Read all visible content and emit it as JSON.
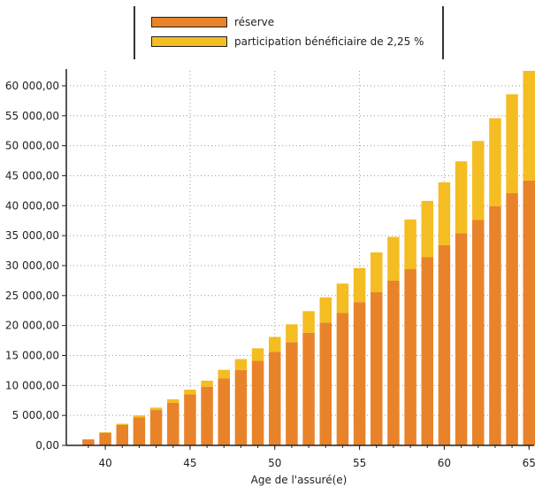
{
  "chart_data": {
    "type": "bar",
    "stacked": true,
    "xlabel": "Age de l'assuré(e)",
    "ylabel": "",
    "ylim": [
      0,
      62500
    ],
    "xlim": [
      37.7,
      65.3
    ],
    "x_ticks": [
      "40",
      "45",
      "50",
      "55",
      "60",
      "65"
    ],
    "y_ticks": [
      "0,00",
      "5 000,00",
      "10 000,00",
      "15 000,00",
      "20 000,00",
      "25 000,00",
      "30 000,00",
      "35 000,00",
      "40 000,00",
      "45 000,00",
      "50 000,00",
      "55 000,00",
      "60 000,00"
    ],
    "grid": true,
    "legend_position": "top-center",
    "x": [
      39,
      40,
      41,
      42,
      43,
      44,
      45,
      46,
      47,
      48,
      49,
      50,
      51,
      52,
      53,
      54,
      55,
      56,
      57,
      58,
      59,
      60,
      61,
      62,
      63,
      64,
      65
    ],
    "series": [
      {
        "name": "réserve",
        "color": "#e9832a",
        "values": [
          1000,
          2100,
          3400,
          4700,
          5900,
          7100,
          8500,
          9800,
          11200,
          12600,
          14100,
          15600,
          17200,
          18800,
          20500,
          22100,
          23900,
          25600,
          27500,
          29400,
          31400,
          33400,
          35400,
          37600,
          39900,
          42100,
          44200
        ]
      },
      {
        "name": "participation bénéficiaire de 2,25 %",
        "color": "#f4bd22",
        "values": [
          0,
          100,
          200,
          300,
          400,
          600,
          800,
          1000,
          1400,
          1800,
          2100,
          2500,
          3000,
          3600,
          4200,
          4900,
          5700,
          6600,
          7300,
          8300,
          9400,
          10500,
          12000,
          13200,
          14700,
          16500,
          18300
        ]
      }
    ]
  }
}
